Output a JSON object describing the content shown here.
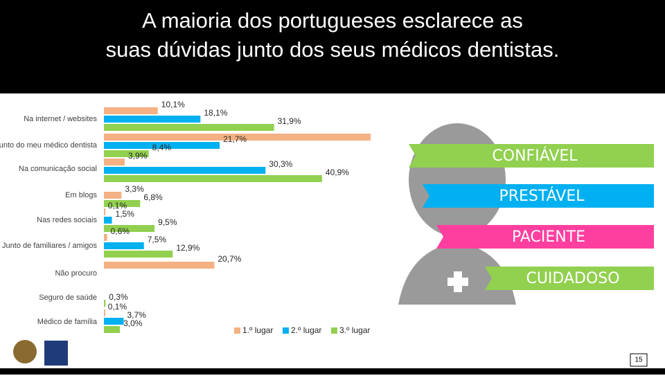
{
  "slide": {
    "title_line1": "A maioria dos portugueses esclarece as",
    "title_line2": "suas dúvidas junto dos seus médicos dentistas.",
    "attributes": [
      "CONFIÁVEL",
      "PRESTÁVEL",
      "PACIENTE",
      "CUIDADOSO"
    ],
    "page_number": "15"
  },
  "chart_data": {
    "type": "bar",
    "orientation": "horizontal",
    "categories": [
      "Na internet / websites",
      "Junto do meu médico dentista",
      "Na comunicação social",
      "Em blogs",
      "Nas redes sociais",
      "Junto de familiares / amigos",
      "Não procuro",
      "Seguro de saúde",
      "Médico de família"
    ],
    "series": [
      {
        "name": "1.º lugar",
        "color": "#f4b183",
        "values": [
          10.1,
          50,
          3.9,
          3.3,
          0.1,
          0.6,
          20.7,
          null,
          0.1
        ],
        "value_labels": [
          "10,1%",
          null,
          "3,9%",
          "3,3%",
          "0,1%",
          "0,6%",
          "20,7%",
          null,
          "0,1%"
        ]
      },
      {
        "name": "2.º lugar",
        "color": "#00b0f0",
        "values": [
          18.1,
          21.7,
          30.3,
          null,
          1.5,
          7.5,
          null,
          null,
          3.7
        ],
        "value_labels": [
          "18,1%",
          "21,7%",
          "30,3%",
          null,
          "1,5%",
          "7,5%",
          null,
          null,
          "3,7%"
        ]
      },
      {
        "name": "3.º lugar",
        "color": "#92d050",
        "values": [
          31.9,
          8.4,
          40.9,
          6.8,
          9.5,
          12.9,
          null,
          0.3,
          3.0
        ],
        "value_labels": [
          "31,9%",
          "8,4%",
          "40,9%",
          "6,8%",
          "9,5%",
          "12,9%",
          null,
          "0,3%",
          "3,0%"
        ]
      }
    ]
  }
}
